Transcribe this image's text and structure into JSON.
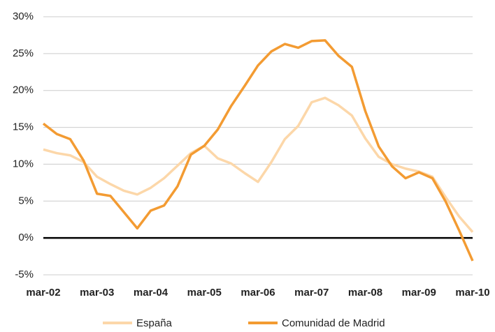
{
  "chart_data": {
    "type": "line",
    "categories": [
      "mar-02",
      null,
      null,
      null,
      "mar-03",
      null,
      null,
      null,
      "mar-04",
      null,
      null,
      null,
      "mar-05",
      null,
      null,
      null,
      "mar-06",
      null,
      null,
      null,
      "mar-07",
      null,
      null,
      null,
      "mar-08",
      null,
      null,
      null,
      "mar-09",
      null,
      null,
      null,
      "mar-10"
    ],
    "series": [
      {
        "name": "España",
        "color": "#fcd7a9",
        "values": [
          12.0,
          11.5,
          11.2,
          10.3,
          8.3,
          7.3,
          6.4,
          5.9,
          6.8,
          8.1,
          9.8,
          11.5,
          12.5,
          10.8,
          10.1,
          8.8,
          7.6,
          10.3,
          13.4,
          15.2,
          18.4,
          19.0,
          18.0,
          16.6,
          13.5,
          11.0,
          10.0,
          9.4,
          9.0,
          8.3,
          5.5,
          2.9,
          0.8
        ]
      },
      {
        "name": "Comunidad de Madrid",
        "color": "#f39b32",
        "values": [
          15.5,
          14.1,
          13.4,
          10.5,
          6.0,
          5.7,
          3.5,
          1.3,
          3.7,
          4.4,
          7.0,
          11.3,
          12.5,
          14.7,
          17.9,
          20.6,
          23.4,
          25.3,
          26.3,
          25.8,
          26.7,
          26.8,
          24.7,
          23.2,
          17.2,
          12.4,
          9.7,
          8.1,
          8.9,
          8.1,
          4.9,
          1.0,
          -3.1
        ]
      }
    ],
    "ylim": [
      -5,
      30
    ],
    "yticks": [
      {
        "value": -5,
        "label": "-5%"
      },
      {
        "value": 0,
        "label": "0%"
      },
      {
        "value": 5,
        "label": "5%"
      },
      {
        "value": 10,
        "label": "10%"
      },
      {
        "value": 15,
        "label": "15%"
      },
      {
        "value": 20,
        "label": "20%"
      },
      {
        "value": 25,
        "label": "25%"
      },
      {
        "value": 30,
        "label": "30%"
      }
    ],
    "grid": true
  }
}
